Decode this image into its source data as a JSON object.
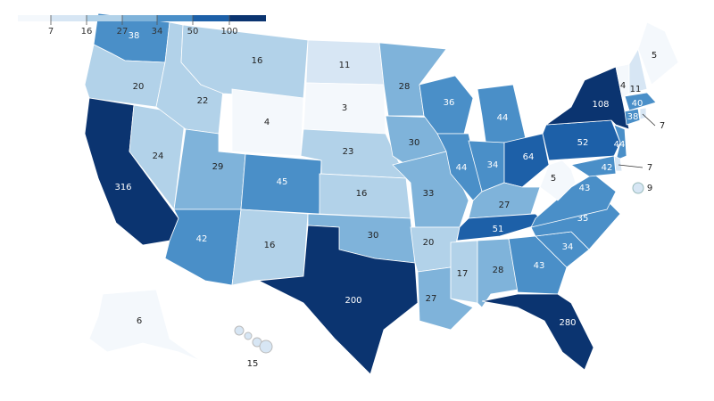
{
  "legend": {
    "ticks": [
      7,
      16,
      27,
      34,
      50,
      100
    ],
    "colors": [
      "#f4f8fc",
      "#d7e6f4",
      "#b2d2e9",
      "#7fb3da",
      "#4a8fc8",
      "#1d60a8",
      "#0b3470"
    ]
  },
  "values": [
    38,
    20,
    316,
    24,
    22,
    16,
    4,
    29,
    42,
    45,
    16,
    11,
    3,
    23,
    16,
    30,
    200,
    28,
    30,
    33,
    20,
    27,
    36,
    44,
    44,
    34,
    64,
    27,
    51,
    17,
    28,
    43,
    280,
    34,
    35,
    43,
    5,
    52,
    108,
    4,
    11,
    5,
    40,
    38,
    7,
    44,
    7,
    42,
    9,
    6,
    15
  ]
}
